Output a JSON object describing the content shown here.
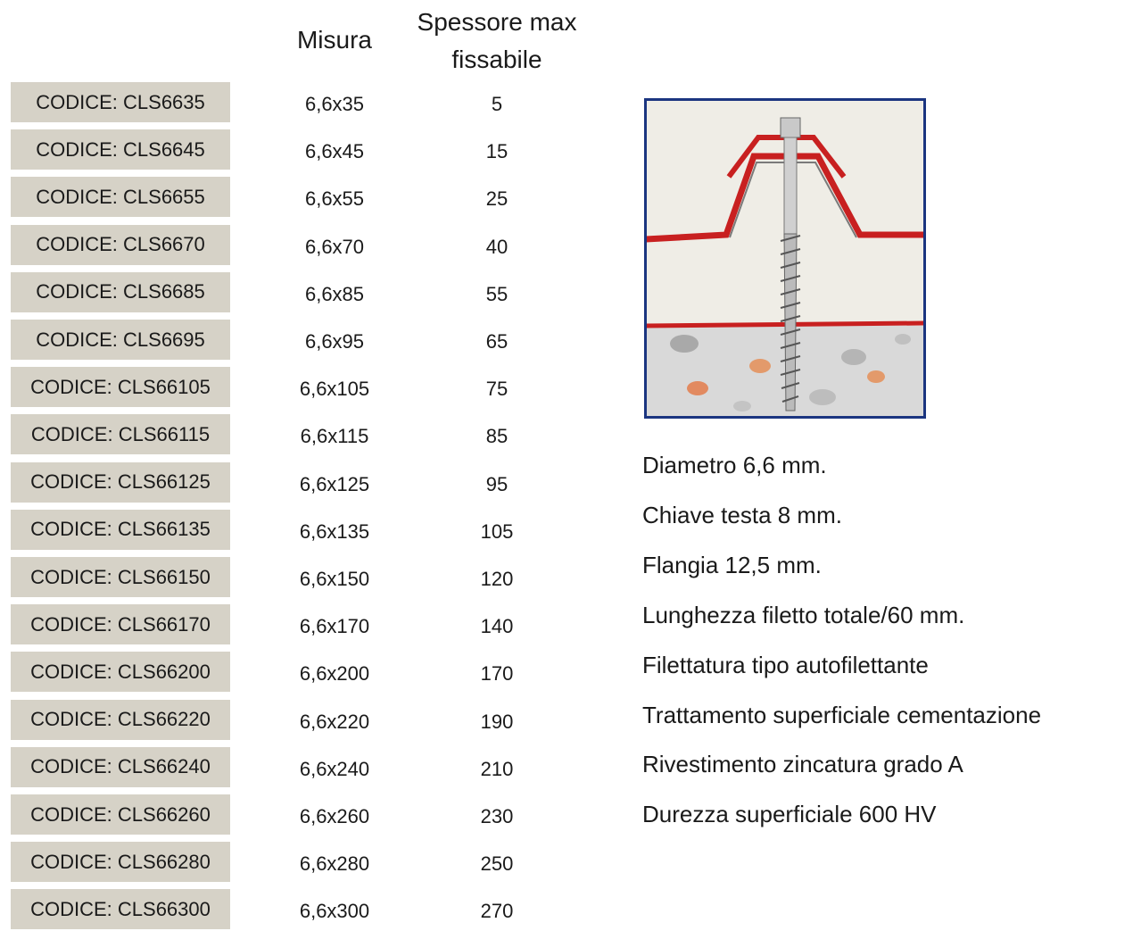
{
  "table": {
    "headers": [
      "Misura",
      "Spessore max fissabile"
    ],
    "rows": [
      [
        "CODICE: CLS6635",
        "6,6x35",
        5
      ],
      [
        "CODICE: CLS6645",
        "6,6x45",
        15
      ],
      [
        "CODICE: CLS6655",
        "6,6x55",
        25
      ],
      [
        "CODICE: CLS6670",
        "6,6x70",
        40
      ],
      [
        "CODICE: CLS6685",
        "6,6x85",
        55
      ],
      [
        "CODICE: CLS6695",
        "6,6x95",
        65
      ],
      [
        "CODICE: CLS66105",
        "6,6x105",
        75
      ],
      [
        "CODICE: CLS66115",
        "6,6x115",
        85
      ],
      [
        "CODICE: CLS66125",
        "6,6x125",
        95
      ],
      [
        "CODICE: CLS66135",
        "6,6x135",
        105
      ],
      [
        "CODICE: CLS66150",
        "6,6x150",
        120
      ],
      [
        "CODICE: CLS66170",
        "6,6x170",
        140
      ],
      [
        "CODICE: CLS66200",
        "6,6x200",
        170
      ],
      [
        "CODICE: CLS66220",
        "6,6x220",
        190
      ],
      [
        "CODICE: CLS66240",
        "6,6x240",
        210
      ],
      [
        "CODICE: CLS66260",
        "6,6x260",
        230
      ],
      [
        "CODICE: CLS66280",
        "6,6x280",
        250
      ],
      [
        "CODICE: CLS66300",
        "6,6x300",
        270
      ]
    ]
  },
  "specs": [
    "Diametro 6,6 mm.",
    "Chiave testa 8 mm.",
    "Flangia 12,5 mm.",
    "Lunghezza filetto totale/60 mm.",
    "Filettatura tipo autofilettante",
    "Trattamento superficiale cementazione",
    "Rivestimento zincatura grado A",
    "Durezza superficiale 600 HV"
  ]
}
